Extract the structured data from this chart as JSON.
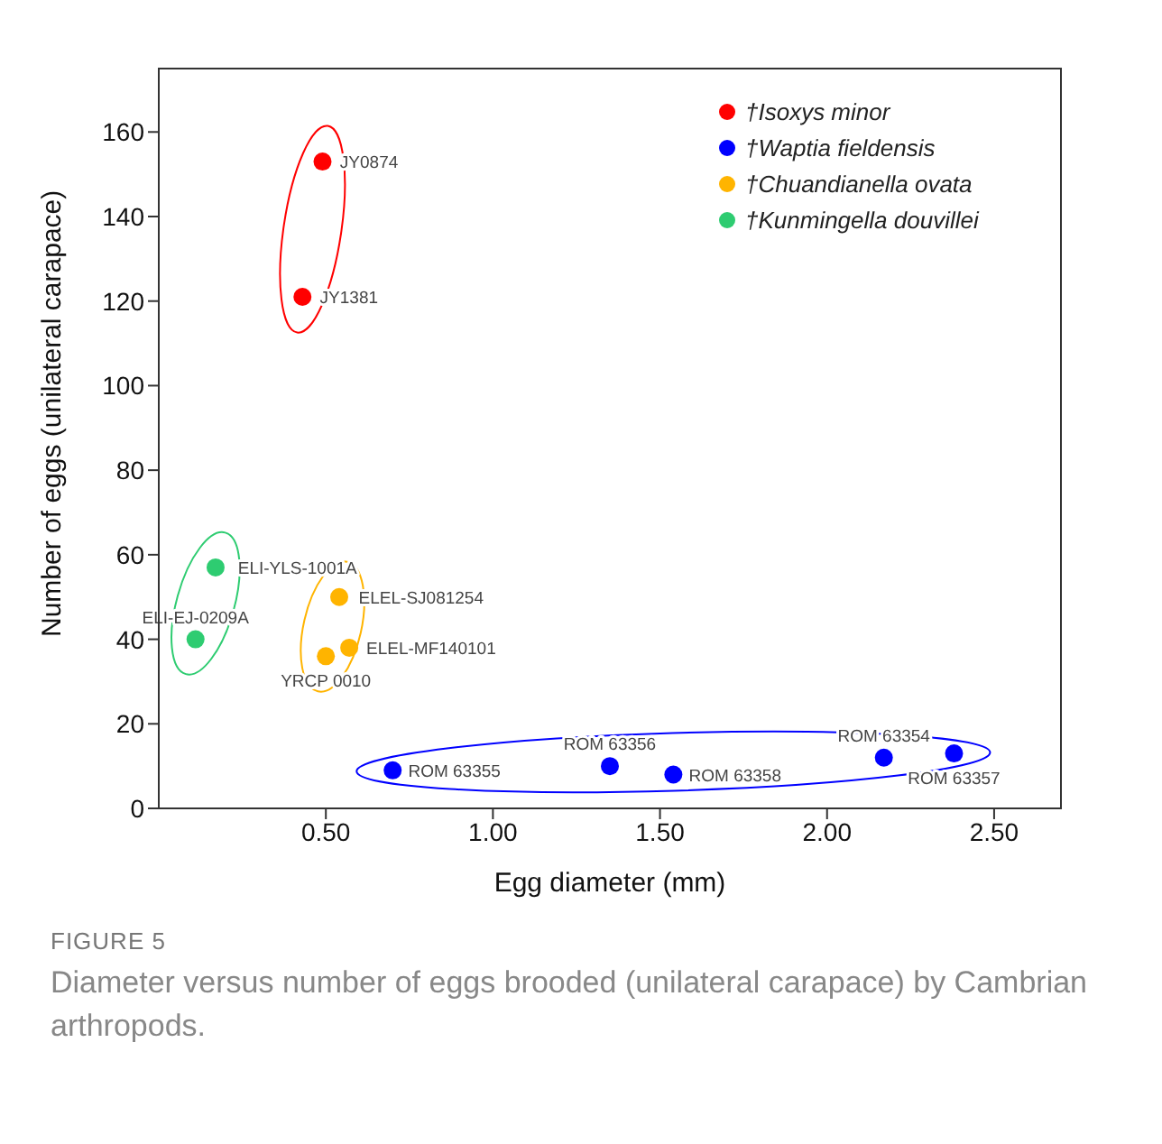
{
  "chart_data": {
    "type": "scatter",
    "title": "FIGURE 5",
    "xlabel": "Egg diameter (mm)",
    "ylabel": "Number of eggs (unilateral carapace)",
    "xlim": [
      0,
      2.7
    ],
    "xticks": [
      {
        "value": 0.5,
        "label": "0.50"
      },
      {
        "value": 1,
        "label": "1.00"
      },
      {
        "value": 1.5,
        "label": "1.50"
      },
      {
        "value": 2,
        "label": "2.00"
      },
      {
        "value": 2.5,
        "label": "2.50"
      }
    ],
    "ylim": [
      0,
      175
    ],
    "yticks": [
      0,
      20,
      40,
      60,
      80,
      100,
      120,
      140,
      160
    ],
    "grid": false,
    "legend": "top right",
    "marker": "circle",
    "series": [
      {
        "name": "†Isoxys minor",
        "color": "#ff0000",
        "x": [
          0.49,
          0.43
        ],
        "values": [
          153,
          121
        ]
      },
      {
        "name": "†Waptia fieldensis",
        "color": "#0000ff",
        "x": [
          0.7,
          1.35,
          1.54,
          2.17,
          2.38
        ],
        "values": [
          9,
          10,
          8,
          12,
          13
        ]
      },
      {
        "name": "†Chuandianella ovata",
        "color": "#ffb400",
        "x": [
          0.54,
          0.57,
          0.5
        ],
        "values": [
          50,
          38,
          36
        ]
      },
      {
        "name": "†Kunmingella douvillei",
        "color": "#2ecc71",
        "x": [
          0.17,
          0.11
        ],
        "values": [
          57,
          40
        ]
      }
    ],
    "annotations": [
      {
        "text": "JY0874",
        "x": 0.49,
        "y": 153
      },
      {
        "text": "JY1381",
        "x": 0.43,
        "y": 121
      },
      {
        "text": "ELI-YLS-1001A",
        "x": 0.17,
        "y": 57
      },
      {
        "text": "ELI-EJ-0209A",
        "x": 0.11,
        "y": 40
      },
      {
        "text": "ELEL-SJ081254",
        "x": 0.54,
        "y": 50
      },
      {
        "text": "ELEL-MF140101",
        "x": 0.57,
        "y": 38
      },
      {
        "text": "YRCP 0010",
        "x": 0.5,
        "y": 36
      },
      {
        "text": "ROM 63355",
        "x": 0.7,
        "y": 9
      },
      {
        "text": "ROM 63356",
        "x": 1.35,
        "y": 10
      },
      {
        "text": "ROM 63358",
        "x": 1.54,
        "y": 8
      },
      {
        "text": "ROM 63354",
        "x": 2.17,
        "y": 12
      },
      {
        "text": "ROM 63357",
        "x": 2.38,
        "y": 13
      },
      "Diameter versus number of eggs brooded (unilateral carapace) by Cambrian arthropods."
    ]
  }
}
